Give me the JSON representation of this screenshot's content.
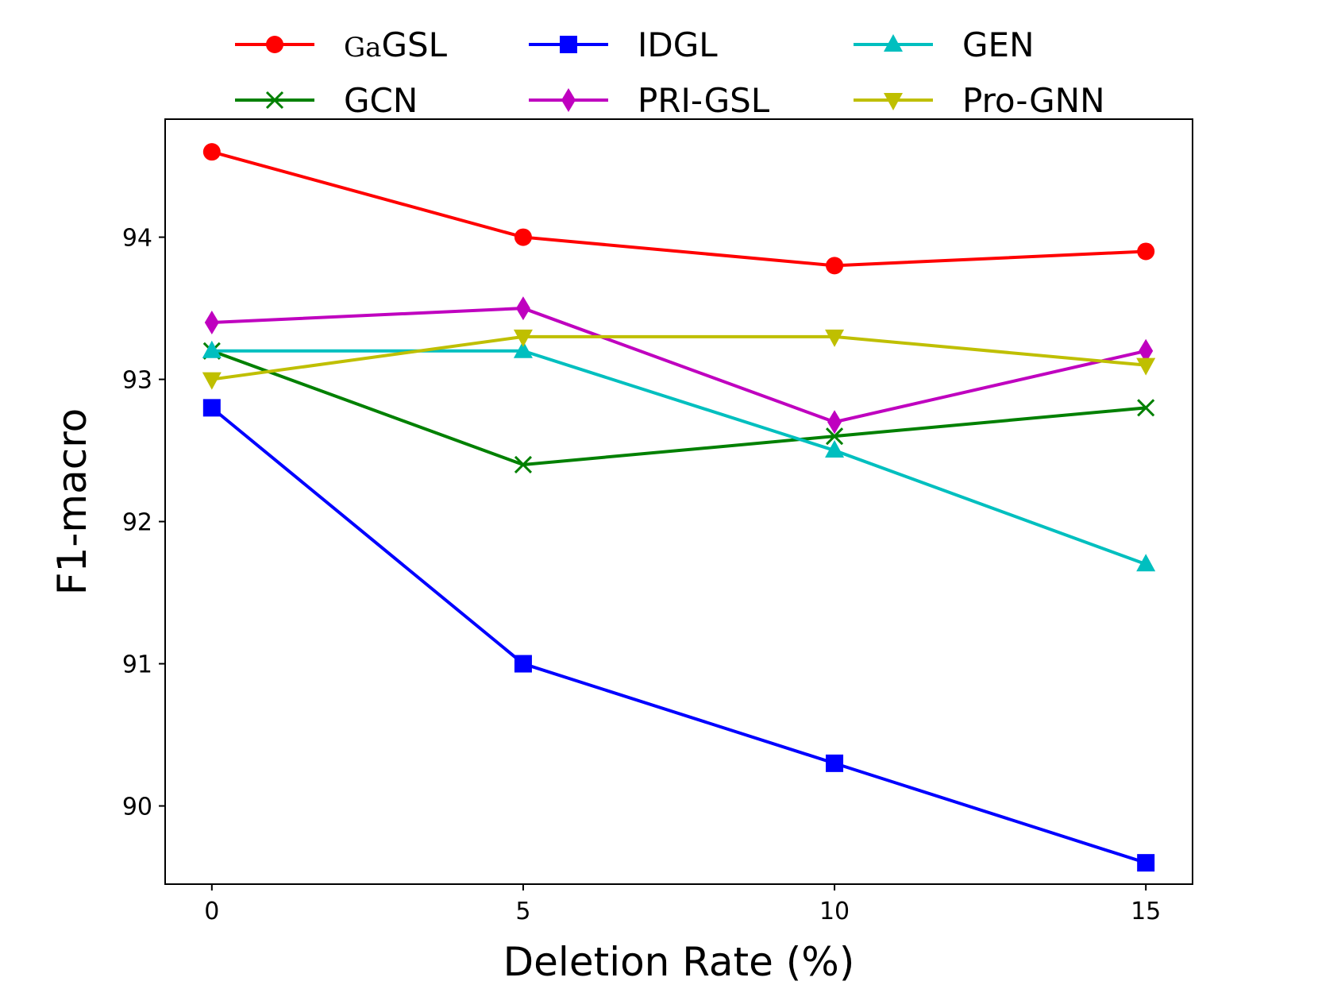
{
  "chart_data": {
    "type": "line",
    "title": "",
    "xlabel": "Deletion Rate (%)",
    "ylabel": "F1-macro",
    "x": [
      0,
      5,
      10,
      15
    ],
    "xticks": [
      "0",
      "5",
      "10",
      "15"
    ],
    "yticks": [
      "90",
      "91",
      "92",
      "93",
      "94"
    ],
    "xlim": [
      -0.75,
      15.75
    ],
    "ylim": [
      89.45,
      94.83
    ],
    "grid": false,
    "legend_position": "top",
    "series": [
      {
        "name": "GaGSL",
        "name_prefix": "Ga",
        "name_suffix": "GSL",
        "color": "#ff0000",
        "marker": "circle",
        "values": [
          94.6,
          94.0,
          93.8,
          93.9
        ]
      },
      {
        "name": "GCN",
        "color": "#008000",
        "marker": "x",
        "values": [
          93.2,
          92.4,
          92.6,
          92.8
        ]
      },
      {
        "name": "IDGL",
        "color": "#0000ff",
        "marker": "square",
        "values": [
          92.8,
          91.0,
          90.3,
          89.6
        ]
      },
      {
        "name": "PRI-GSL",
        "color": "#bf00bf",
        "marker": "diamond",
        "values": [
          93.4,
          93.5,
          92.7,
          93.2
        ]
      },
      {
        "name": "GEN",
        "color": "#00bfbf",
        "marker": "triangle-up",
        "values": [
          93.2,
          93.2,
          92.5,
          91.7
        ]
      },
      {
        "name": "Pro-GNN",
        "color": "#bfbf00",
        "marker": "triangle-down",
        "values": [
          93.0,
          93.3,
          93.3,
          93.1
        ]
      }
    ]
  }
}
